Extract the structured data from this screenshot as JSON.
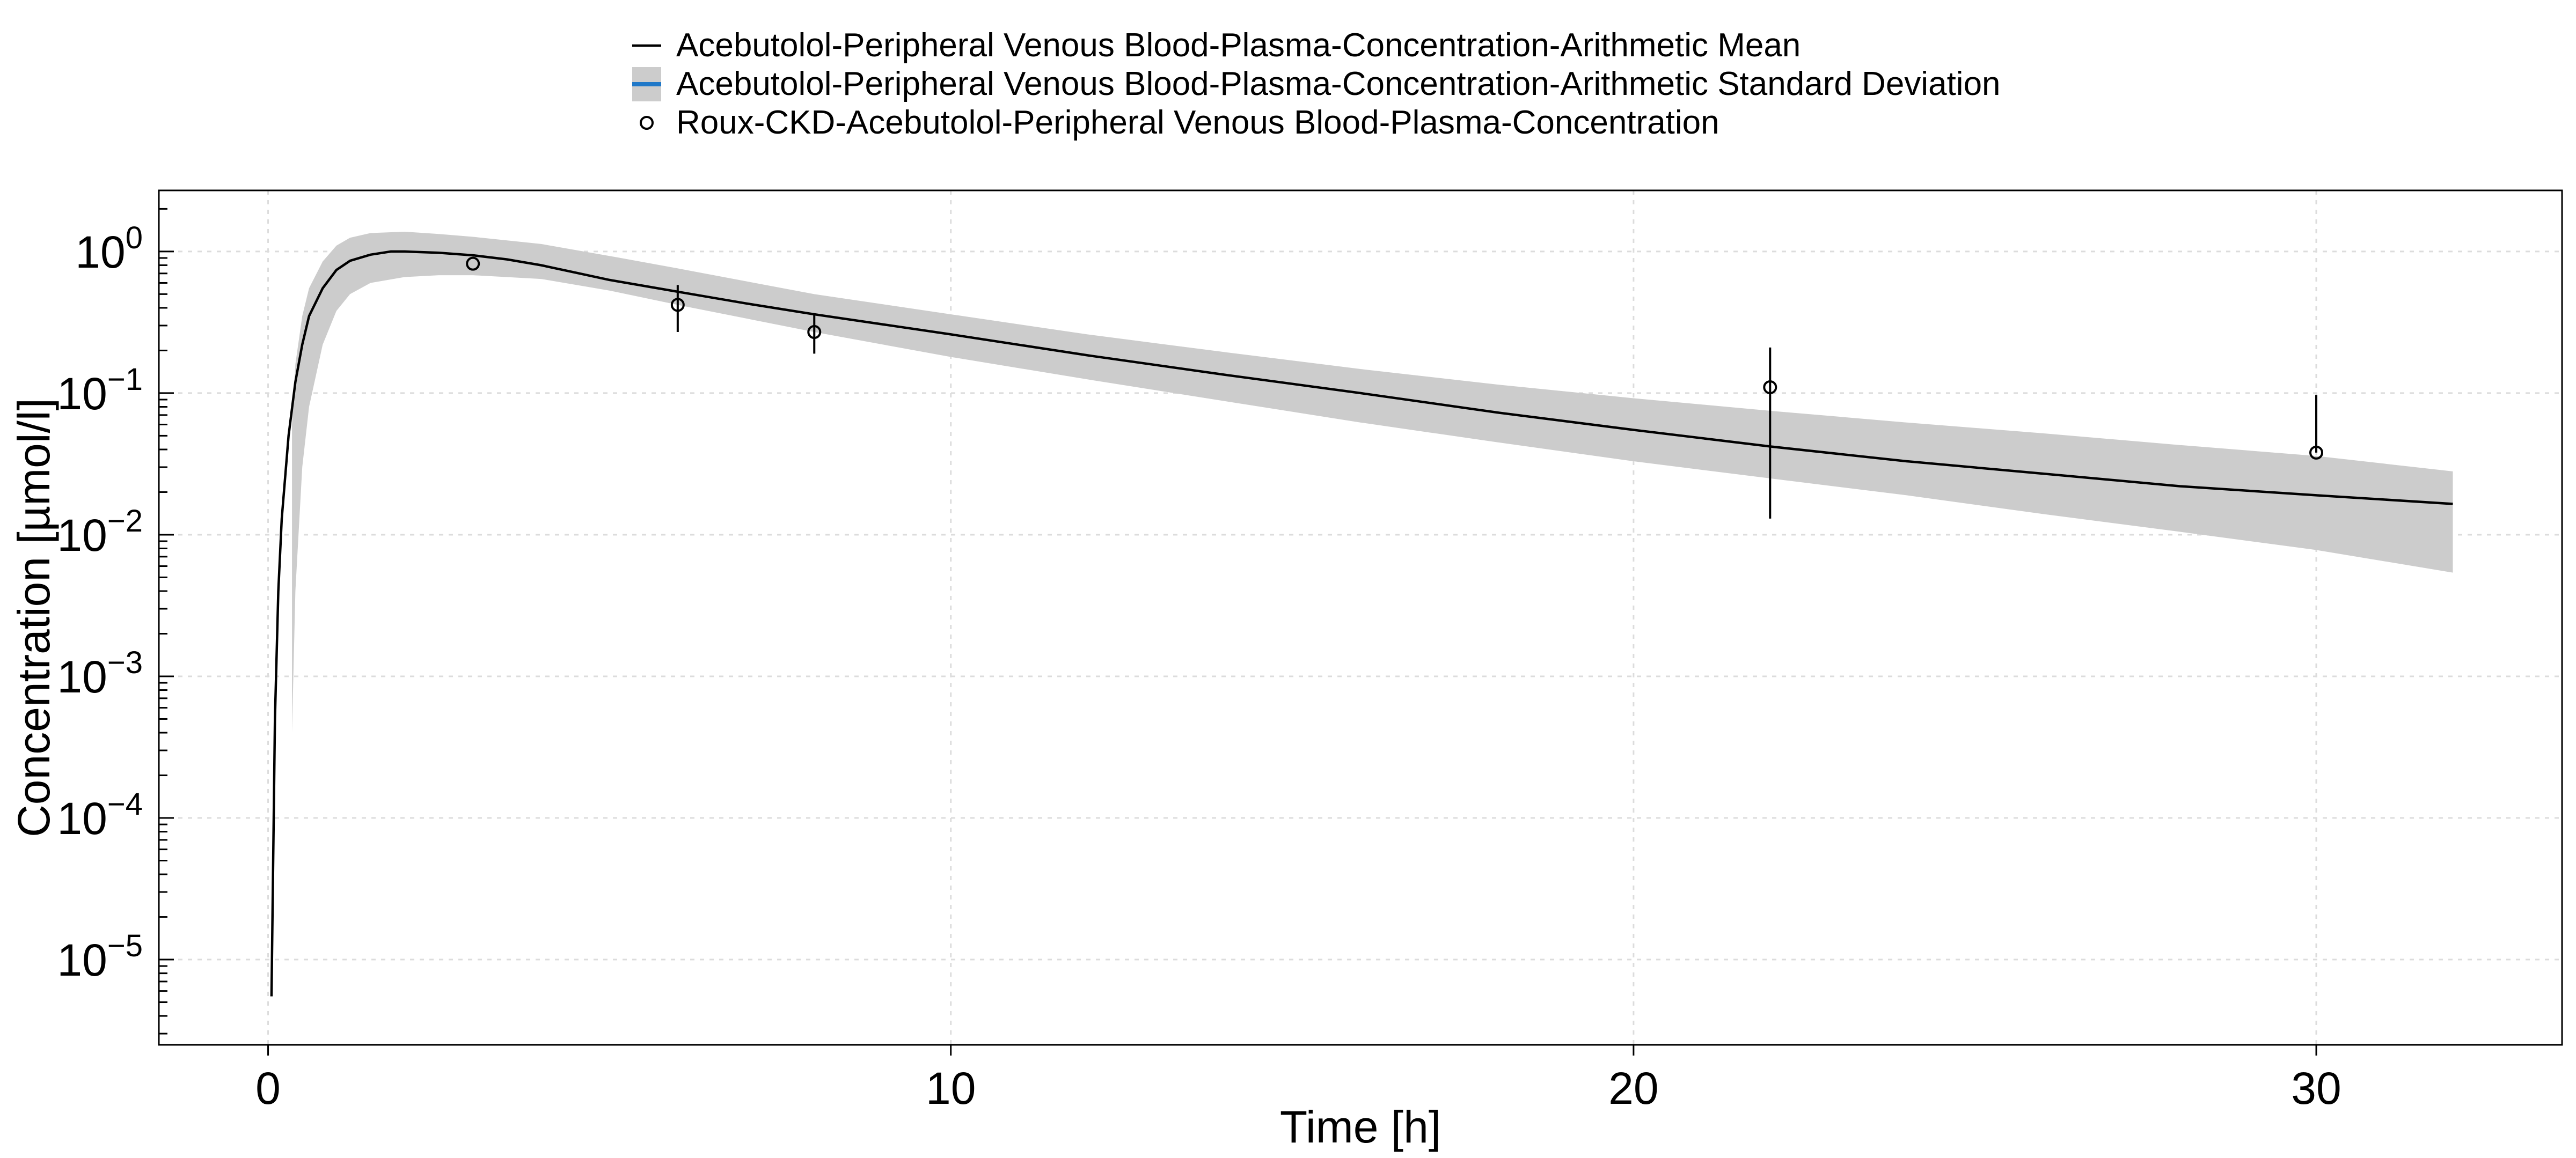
{
  "chart_data": {
    "type": "line",
    "xlabel": "Time [h]",
    "ylabel": "Concentration [µmol/l]",
    "xlim": [
      -1.6,
      33.6
    ],
    "ylim": [
      2.5e-06,
      2.7
    ],
    "yscale": "log",
    "xticks": [
      {
        "value": 0,
        "label": "0"
      },
      {
        "value": 10,
        "label": "10"
      },
      {
        "value": 20,
        "label": "20"
      },
      {
        "value": 30,
        "label": "30"
      }
    ],
    "yticks": [
      {
        "value": 1,
        "base": "10",
        "exp": "0"
      },
      {
        "value": 0.1,
        "base": "10",
        "exp": "−1"
      },
      {
        "value": 0.01,
        "base": "10",
        "exp": "−2"
      },
      {
        "value": 0.001,
        "base": "10",
        "exp": "−3"
      },
      {
        "value": 0.0001,
        "base": "10",
        "exp": "−4"
      },
      {
        "value": 1e-05,
        "base": "10",
        "exp": "−5"
      }
    ],
    "grid": true,
    "legend_position": "top-center",
    "legend": [
      {
        "label": "Acebutolol-Peripheral Venous Blood-Plasma-Concentration-Arithmetic Mean",
        "marker": "line"
      },
      {
        "label": "Acebutolol-Peripheral Venous Blood-Plasma-Concentration-Arithmetic Standard Deviation",
        "marker": "ribbon"
      },
      {
        "label": "Roux-CKD-Acebutolol-Peripheral Venous Blood-Plasma-Concentration",
        "marker": "circle"
      }
    ],
    "series": [
      {
        "kind": "mean-line",
        "color": "#000000",
        "x": [
          0.05,
          0.1,
          0.15,
          0.2,
          0.3,
          0.4,
          0.5,
          0.6,
          0.8,
          1.0,
          1.2,
          1.5,
          1.8,
          2.0,
          2.5,
          3.0,
          3.5,
          4.0,
          4.5,
          5.0,
          6.0,
          7.0,
          8.0,
          10.0,
          12.0,
          14.0,
          16.0,
          18.0,
          20.0,
          22.0,
          24.0,
          26.0,
          28.0,
          30.0,
          32.0
        ],
        "y": [
          5.5e-06,
          0.0005,
          0.004,
          0.013,
          0.05,
          0.12,
          0.22,
          0.35,
          0.55,
          0.74,
          0.86,
          0.95,
          1.0,
          1.0,
          0.98,
          0.94,
          0.88,
          0.8,
          0.71,
          0.63,
          0.52,
          0.43,
          0.36,
          0.26,
          0.185,
          0.135,
          0.1,
          0.073,
          0.055,
          0.042,
          0.033,
          0.027,
          0.022,
          0.019,
          0.0165
        ]
      },
      {
        "kind": "sd-ribbon",
        "color": "#cccccc",
        "x": [
          0.35,
          0.4,
          0.5,
          0.6,
          0.8,
          1.0,
          1.2,
          1.5,
          2.0,
          2.5,
          3.0,
          4.0,
          5.0,
          6.0,
          8.0,
          10.0,
          12.0,
          14.0,
          16.0,
          18.0,
          20.0,
          22.0,
          24.0,
          26.0,
          28.0,
          30.0,
          32.0
        ],
        "upper": [
          0.06,
          0.16,
          0.35,
          0.55,
          0.85,
          1.1,
          1.25,
          1.35,
          1.38,
          1.33,
          1.27,
          1.13,
          0.93,
          0.76,
          0.5,
          0.36,
          0.26,
          0.195,
          0.148,
          0.115,
          0.092,
          0.075,
          0.062,
          0.052,
          0.043,
          0.036,
          0.028
        ],
        "lower": [
          0.0004,
          0.004,
          0.03,
          0.08,
          0.22,
          0.38,
          0.5,
          0.6,
          0.66,
          0.68,
          0.68,
          0.64,
          0.53,
          0.42,
          0.27,
          0.18,
          0.125,
          0.088,
          0.062,
          0.045,
          0.033,
          0.025,
          0.019,
          0.014,
          0.0105,
          0.0078,
          0.0054
        ]
      },
      {
        "kind": "observed",
        "points": [
          {
            "x": 3.0,
            "y": 0.82,
            "lo": null,
            "hi": null
          },
          {
            "x": 6.0,
            "y": 0.42,
            "lo": 0.27,
            "hi": 0.58
          },
          {
            "x": 8.0,
            "y": 0.27,
            "lo": 0.19,
            "hi": 0.36
          },
          {
            "x": 22.0,
            "y": 0.11,
            "lo": 0.013,
            "hi": 0.21
          },
          {
            "x": 30.0,
            "y": 0.038,
            "lo": null,
            "hi": 0.097
          }
        ]
      }
    ]
  }
}
